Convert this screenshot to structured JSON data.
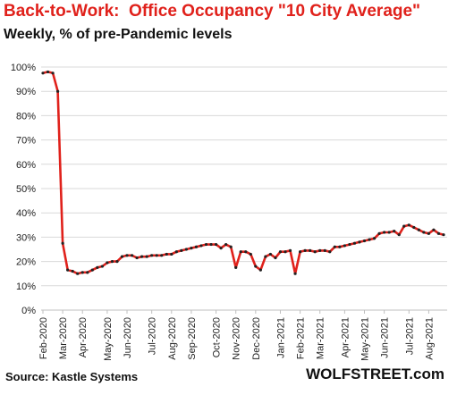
{
  "title": "Back-to-Work:  Office Occupancy \"10 City Average\"",
  "subtitle": "Weekly, % of pre-Pandemic levels",
  "source": "Source: Kastle Systems",
  "brand": "WOLFSTREET.com",
  "colors": {
    "title": "#e0211b",
    "line": "#e0211b",
    "marker": "#222222",
    "grid": "#d9d9d9",
    "axis": "#bfbfbf"
  },
  "chart_data": {
    "type": "line",
    "ylim": [
      0,
      100
    ],
    "yticks": [
      0,
      10,
      20,
      30,
      40,
      50,
      60,
      70,
      80,
      90,
      100
    ],
    "ytick_labels": [
      "0%",
      "10%",
      "20%",
      "30%",
      "40%",
      "50%",
      "60%",
      "70%",
      "80%",
      "90%",
      "100%"
    ],
    "grid": true,
    "xticks": [
      {
        "label": "Feb-2020",
        "pos": 0
      },
      {
        "label": "Mar-2020",
        "pos": 4
      },
      {
        "label": "Apr-2020",
        "pos": 8
      },
      {
        "label": "May-2020",
        "pos": 13
      },
      {
        "label": "Jun-2020",
        "pos": 17
      },
      {
        "label": "Jul-2020",
        "pos": 22
      },
      {
        "label": "Aug-2020",
        "pos": 26
      },
      {
        "label": "Sep-2020",
        "pos": 30
      },
      {
        "label": "Oct-2020",
        "pos": 35
      },
      {
        "label": "Nov-2020",
        "pos": 39
      },
      {
        "label": "Dec-2020",
        "pos": 43
      },
      {
        "label": "Jan-2021",
        "pos": 48
      },
      {
        "label": "Feb-2021",
        "pos": 52
      },
      {
        "label": "Mar-2021",
        "pos": 56
      },
      {
        "label": "Apr-2021",
        "pos": 61
      },
      {
        "label": "May-2021",
        "pos": 65
      },
      {
        "label": "Jun-2021",
        "pos": 69
      },
      {
        "label": "Jul-2021",
        "pos": 74
      },
      {
        "label": "Aug-2021",
        "pos": 78
      }
    ],
    "series": [
      {
        "values": [
          97.5,
          98,
          97.5,
          90,
          27.5,
          16.5,
          16,
          15,
          15.5,
          15.5,
          16.5,
          17.5,
          18,
          19.5,
          20,
          20,
          22,
          22.5,
          22.5,
          21.5,
          22,
          22,
          22.5,
          22.5,
          22.5,
          23,
          23,
          24,
          24.5,
          25,
          25.5,
          26,
          26.5,
          27,
          27,
          27,
          25.5,
          27,
          26,
          17.5,
          24,
          24,
          23,
          18,
          16.5,
          22,
          23,
          21.5,
          24,
          24,
          24.5,
          15,
          24,
          24.5,
          24.5,
          24,
          24.5,
          24.5,
          24,
          26,
          26,
          26.5,
          27,
          27.5,
          28,
          28.5,
          29,
          29.5,
          31.5,
          32,
          32,
          32.5,
          31,
          34.5,
          35,
          34,
          33,
          32,
          31.5,
          33,
          31.5,
          31
        ]
      }
    ]
  }
}
